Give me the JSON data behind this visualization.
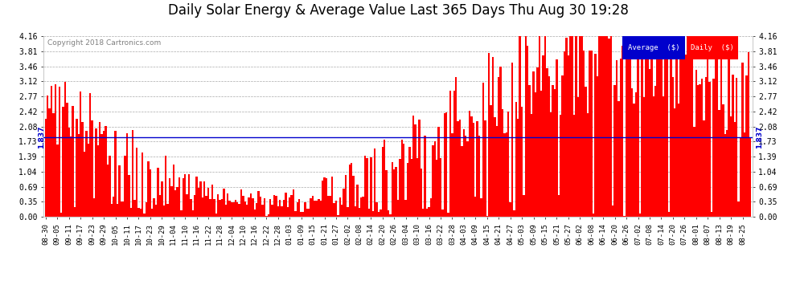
{
  "title": "Daily Solar Energy & Average Value Last 365 Days Thu Aug 30 19:28",
  "copyright": "Copyright 2018 Cartronics.com",
  "average_value": 1.837,
  "ylim": [
    0.0,
    4.16
  ],
  "yticks": [
    0.0,
    0.35,
    0.69,
    1.04,
    1.39,
    1.73,
    2.08,
    2.42,
    2.77,
    3.12,
    3.46,
    3.81,
    4.16
  ],
  "bar_color": "#ff0000",
  "avg_line_color": "#0000cc",
  "background_color": "#ffffff",
  "grid_color": "#aaaaaa",
  "legend_avg_color": "#0000cc",
  "legend_daily_color": "#ff0000",
  "title_fontsize": 12,
  "num_bars": 365,
  "x_labels": [
    "08-30",
    "09-05",
    "09-11",
    "09-17",
    "09-23",
    "09-29",
    "10-05",
    "10-11",
    "10-17",
    "10-23",
    "10-29",
    "11-04",
    "11-10",
    "11-16",
    "11-22",
    "11-28",
    "12-04",
    "12-10",
    "12-16",
    "12-22",
    "12-28",
    "01-03",
    "01-09",
    "01-15",
    "01-21",
    "01-27",
    "02-02",
    "02-08",
    "02-14",
    "02-20",
    "02-26",
    "03-04",
    "03-10",
    "03-16",
    "03-22",
    "03-28",
    "04-03",
    "04-09",
    "04-15",
    "04-21",
    "04-27",
    "05-03",
    "05-09",
    "05-15",
    "05-21",
    "05-27",
    "06-02",
    "06-08",
    "06-14",
    "06-20",
    "06-26",
    "07-02",
    "07-08",
    "07-14",
    "07-20",
    "07-26",
    "08-01",
    "08-07",
    "08-13",
    "08-19",
    "08-25"
  ]
}
